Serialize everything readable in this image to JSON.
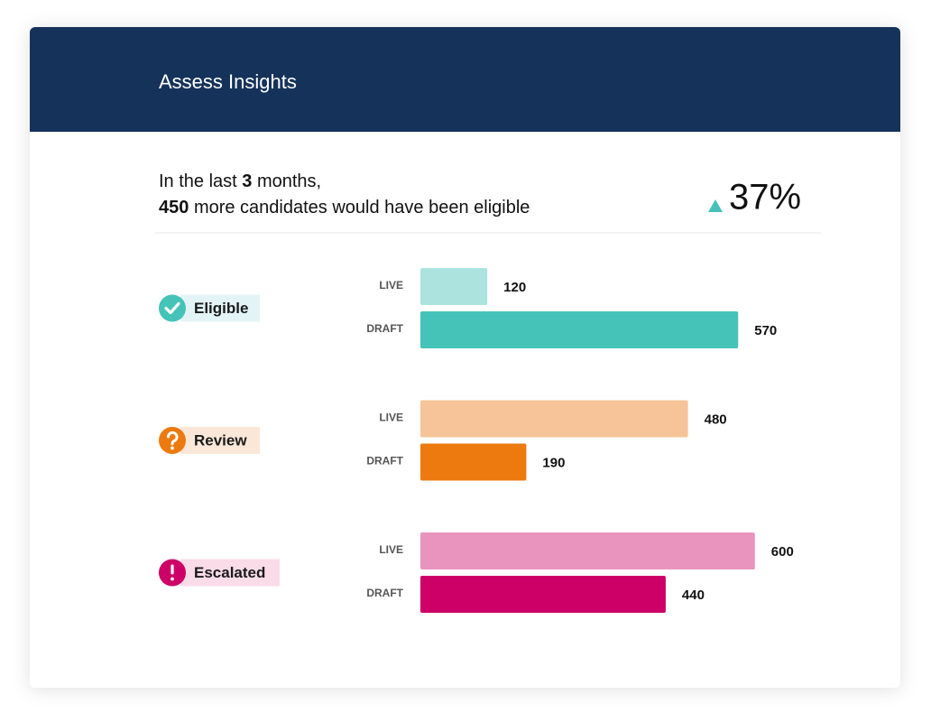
{
  "header": {
    "title": "Assess Insights"
  },
  "summary": {
    "line1": {
      "before": "In the last",
      "months": 3,
      "after": "months,"
    },
    "line2": {
      "count": 450,
      "after": "more candidates would have been eligible"
    },
    "change": "37%"
  },
  "chart_data": {
    "type": "bar",
    "orientation": "horizontal",
    "categories": [
      "Eligible",
      "Review",
      "Escalated"
    ],
    "category_colors": [
      "#45c3b8",
      "#ec7a0f",
      "#cc0066"
    ],
    "category_badge_colors": [
      "#e3f4f6",
      "#fbe7d8",
      "#fadbe8"
    ],
    "series": [
      {
        "name": "LIVE",
        "colors": [
          "#ade3df",
          "#f6c498",
          "#e993bf"
        ],
        "values": [
          120,
          480,
          600
        ]
      },
      {
        "name": "DRAFT",
        "colors": [
          "#45c3b8",
          "#ec7a0f",
          "#cc0066"
        ],
        "values": [
          570,
          190,
          440
        ]
      }
    ]
  }
}
